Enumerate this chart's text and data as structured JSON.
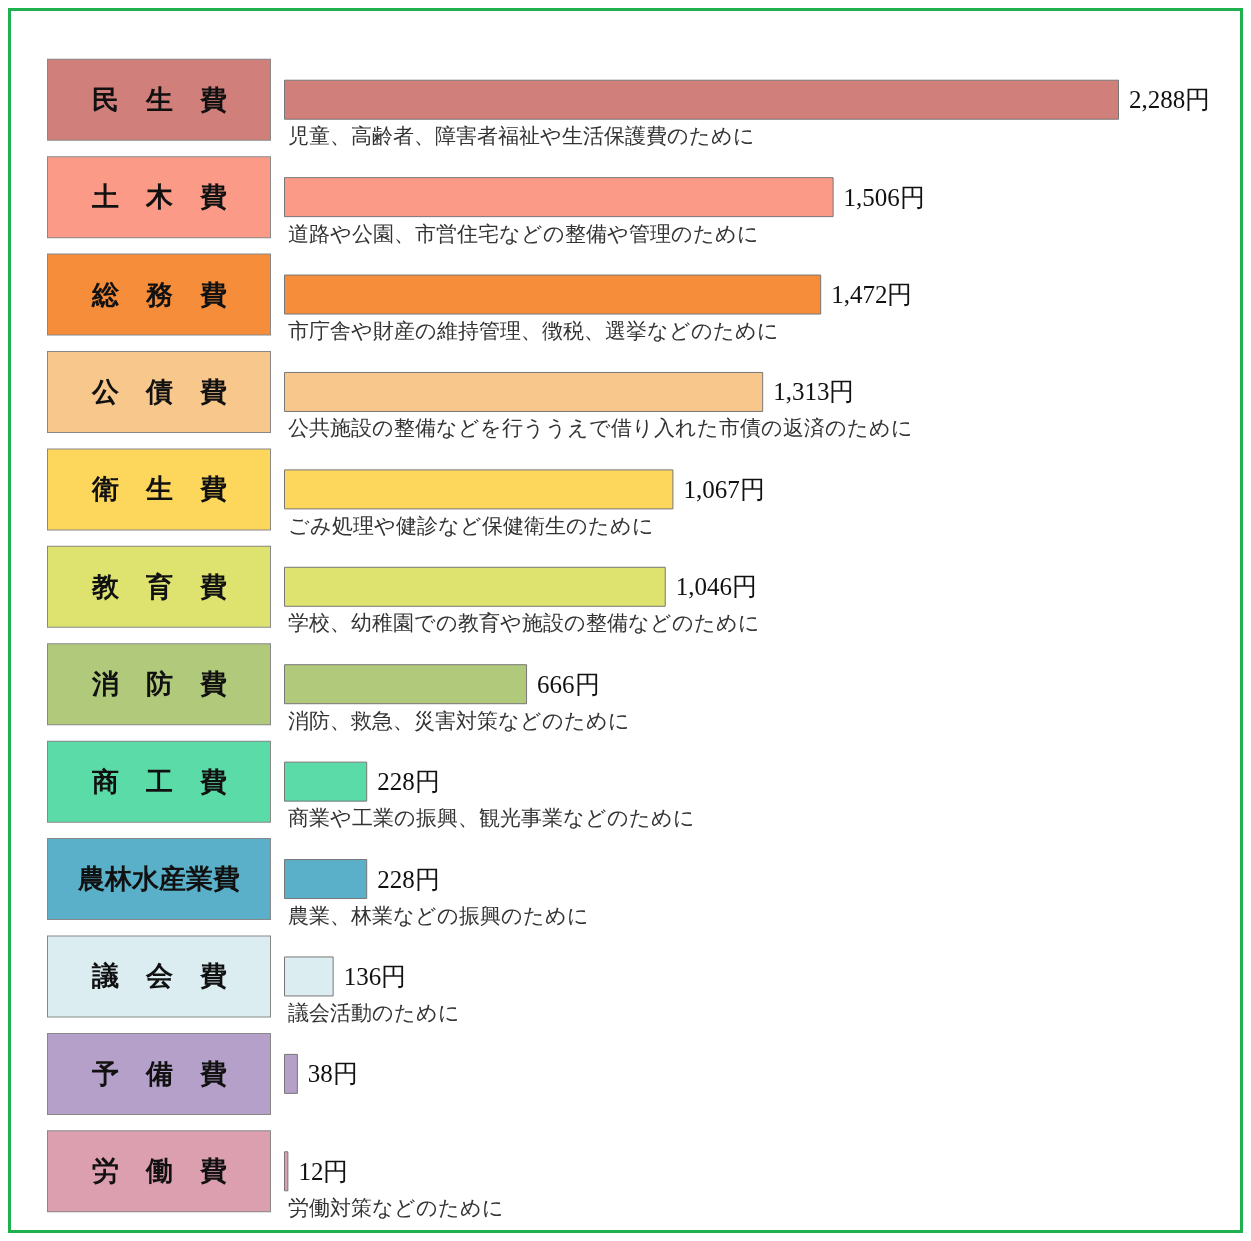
{
  "chart_data": {
    "type": "bar",
    "orientation": "horizontal",
    "tick_labels": "y",
    "grid": false,
    "categories": [
      "民　生　費",
      "土　木　費",
      "総　務　費",
      "公　債　費",
      "衛　生　費",
      "教　育　費",
      "消　防　費",
      "商　工　費",
      "農林水産業費",
      "議　会　費",
      "予　備　費",
      "労　働　費"
    ],
    "values": [
      2288,
      1506,
      1472,
      1313,
      1067,
      1046,
      666,
      228,
      228,
      136,
      38,
      12
    ],
    "value_labels": [
      "2,288円",
      "1,506円",
      "1,472円",
      "1,313円",
      "1,067円",
      "1,046円",
      "666円",
      "228円",
      "228円",
      "136円",
      "38円",
      "12円"
    ],
    "colors": [
      "#d07f7a",
      "#fb9b87",
      "#f58d3b",
      "#f7c78c",
      "#fdd75b",
      "#dde36e",
      "#b0c97a",
      "#5adba8",
      "#5ab0c8",
      "#dbedf1",
      "#b4a0c8",
      "#dc9fb0"
    ],
    "annotations": [
      "児童、高齢者、障害者福祉や生活保護費のために",
      "道路や公園、市営住宅などの整備や管理のために",
      "市庁舎や財産の維持管理、徴税、選挙などのために",
      "公共施設の整備などを行ううえで借り入れた市債の返済のために",
      "ごみ処理や健診など保健衛生のために",
      "学校、幼稚園での教育や施設の整備などのために",
      "消防、救急、災害対策などのために",
      "商業や工業の振興、観光事業などのために",
      "農業、林業などの振興のために",
      "議会活動のために",
      "労働対策などのために"
    ]
  }
}
